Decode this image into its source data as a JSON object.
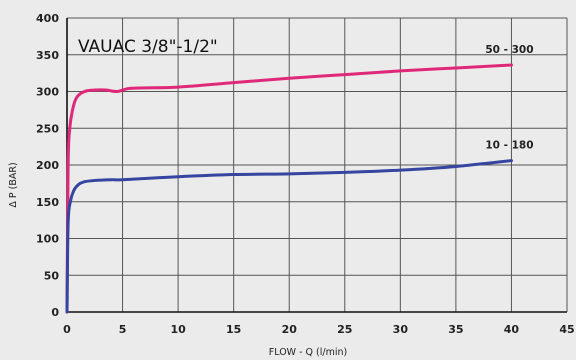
{
  "chart_data": {
    "type": "line",
    "title": "VAUAC 3/8\"-1/2\"",
    "xlabel": "FLOW - Q (l/min)",
    "ylabel": "Δ P (BAR)",
    "xlim": [
      0,
      45
    ],
    "ylim": [
      0,
      400
    ],
    "xticks": [
      0,
      5,
      10,
      15,
      20,
      25,
      30,
      35,
      40,
      45
    ],
    "yticks": [
      0,
      50,
      100,
      150,
      200,
      250,
      300,
      350,
      400
    ],
    "grid": true,
    "series": [
      {
        "name": "50 - 300",
        "color": "#e0287a",
        "x": [
          0,
          0.1,
          0.25,
          0.5,
          0.8,
          1.2,
          1.8,
          2.5,
          3.5,
          4.5,
          5.5,
          7,
          10,
          15,
          20,
          25,
          30,
          35,
          40
        ],
        "y": [
          0,
          200,
          250,
          275,
          290,
          297,
          301,
          302,
          302,
          300,
          304,
          305,
          306,
          312,
          318,
          323,
          328,
          332,
          336
        ]
      },
      {
        "name": "10 - 180",
        "color": "#3545a0",
        "x": [
          0,
          0.1,
          0.3,
          0.6,
          1,
          1.5,
          2.5,
          4,
          5,
          10,
          15,
          20,
          25,
          30,
          35,
          40
        ],
        "y": [
          0,
          120,
          150,
          165,
          173,
          177,
          179,
          180,
          180,
          184,
          187,
          188,
          190,
          193,
          198,
          206
        ]
      }
    ]
  }
}
